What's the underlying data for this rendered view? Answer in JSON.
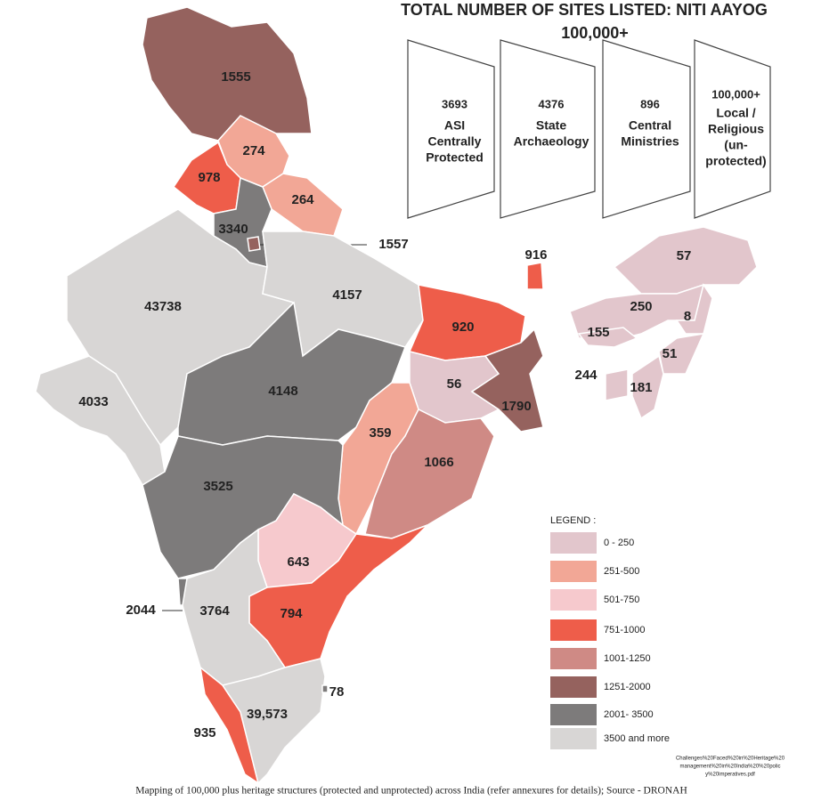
{
  "header": {
    "title": "TOTAL NUMBER OF SITES LISTED: NITI AAYOG",
    "total": "100,000+"
  },
  "boxes": [
    {
      "count": "3693",
      "label": [
        "ASI",
        "Centrally",
        "Protected"
      ]
    },
    {
      "count": "4376",
      "label": [
        "State",
        "Archaeology"
      ]
    },
    {
      "count": "896",
      "label": [
        "Central",
        "Ministries"
      ]
    },
    {
      "count": "100,000+",
      "label": [
        "Local /",
        "Religious",
        "(un-",
        "protected)"
      ]
    }
  ],
  "map": {
    "regions": [
      "1555",
      "274",
      "978",
      "264",
      "3340",
      "1557",
      "43738",
      "4157",
      "920",
      "916",
      "57",
      "250",
      "8",
      "155",
      "51",
      "244",
      "181",
      "4033",
      "4148",
      "56",
      "1790",
      "359",
      "1066",
      "3525",
      "643",
      "794",
      "2044",
      "3764",
      "935",
      "39,573",
      "78"
    ]
  },
  "legend": {
    "title": "LEGEND :",
    "items": [
      "0 - 250",
      "251-500",
      "501-750",
      "751-1000",
      "1001-1250",
      "1251-2000",
      "2001- 3500",
      "3500 and more"
    ]
  },
  "source_note": [
    "Challenges%20Faced%20in%20Heritage%20",
    "management%20in%20India%20%20polic",
    "y%20imperatives.pdf"
  ],
  "caption": "Mapping of 100,000 plus heritage structures (protected and unprotected) across India (refer annexures for details); Source - DRONAH"
}
